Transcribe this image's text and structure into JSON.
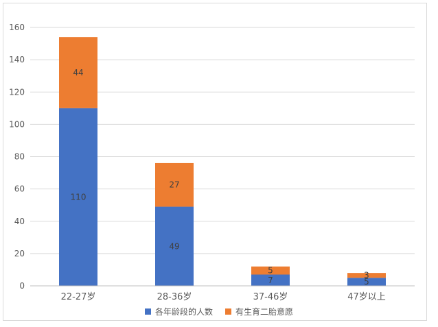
{
  "chart_data": {
    "type": "bar",
    "stacked": true,
    "categories": [
      "22-27岁",
      "28-36岁",
      "37-46岁",
      "47岁以上"
    ],
    "series": [
      {
        "name": "各年龄段的人数",
        "values": [
          110,
          49,
          7,
          5
        ],
        "color": "#4472c4"
      },
      {
        "name": "有生育二胎意愿",
        "values": [
          44,
          27,
          5,
          3
        ],
        "color": "#ed7d31"
      }
    ],
    "ylim": [
      0,
      160
    ],
    "yticks": [
      0,
      20,
      40,
      60,
      80,
      100,
      120,
      140,
      160
    ],
    "grid": true,
    "legend": "bottom",
    "title": "",
    "xlabel": "",
    "ylabel": ""
  }
}
